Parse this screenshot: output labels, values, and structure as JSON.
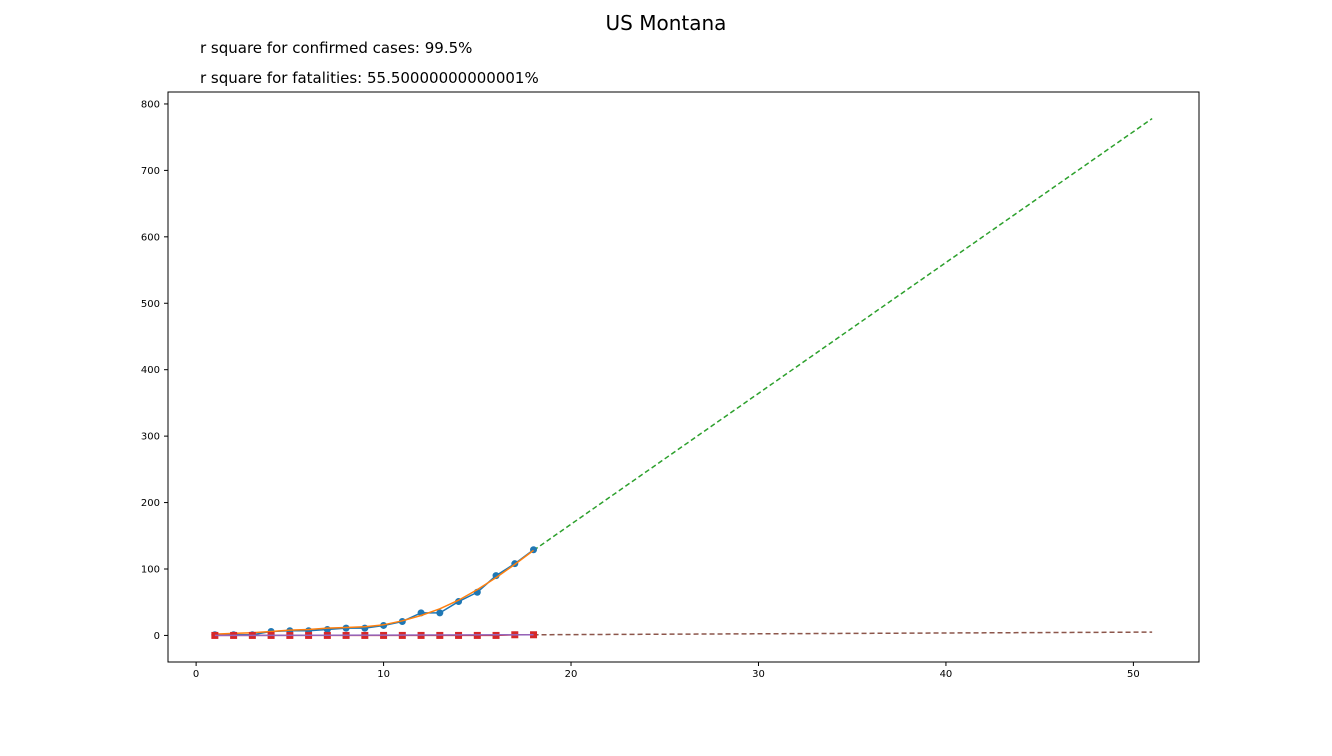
{
  "chart_data": {
    "type": "line",
    "title": "US Montana",
    "annotations": [
      "r square for confirmed cases: 99.5%",
      "r square for fatalities: 55.50000000000001%"
    ],
    "xlabel": "",
    "ylabel": "",
    "xlim": [
      -1.5,
      53.5
    ],
    "ylim": [
      -40,
      818
    ],
    "xticks": [
      0,
      10,
      20,
      30,
      40,
      50
    ],
    "yticks": [
      0,
      100,
      200,
      300,
      400,
      500,
      600,
      700,
      800
    ],
    "grid": false,
    "colors": {
      "confirmed": "#1f77b4",
      "confirmed_fit": "#ff7f0e",
      "confirmed_projection": "#2ca02c",
      "fatalities": "#d62728",
      "fatalities_fit": "#9467bd",
      "fatalities_projection": "#8c564b"
    },
    "series": [
      {
        "key": "confirmed",
        "style": "line-marker-circle",
        "x": [
          1,
          2,
          3,
          4,
          5,
          6,
          7,
          8,
          9,
          10,
          11,
          12,
          13,
          14,
          15,
          16,
          17,
          18
        ],
        "y": [
          1,
          1,
          1,
          6,
          7,
          7,
          9,
          11,
          11,
          15,
          21,
          34,
          34,
          51,
          65,
          90,
          108,
          129
        ]
      },
      {
        "key": "confirmed_fit",
        "style": "line",
        "x": [
          1,
          2,
          3,
          4,
          5,
          6,
          7,
          8,
          9,
          10,
          11,
          12,
          13,
          14,
          15,
          16,
          17,
          18
        ],
        "y": [
          2,
          3,
          4,
          6,
          8,
          9,
          11,
          12,
          13,
          16,
          22,
          30,
          40,
          53,
          69,
          87,
          107,
          128
        ]
      },
      {
        "key": "confirmed_projection",
        "style": "dashed",
        "x": [
          18,
          51
        ],
        "y": [
          128,
          778
        ]
      },
      {
        "key": "fatalities",
        "style": "line-marker-square",
        "x": [
          1,
          2,
          3,
          4,
          5,
          6,
          7,
          8,
          9,
          10,
          11,
          12,
          13,
          14,
          15,
          16,
          17,
          18
        ],
        "y": [
          0,
          0,
          0,
          0,
          0,
          0,
          0,
          0,
          0,
          0,
          0,
          0,
          0,
          0,
          0,
          0,
          1,
          1
        ]
      },
      {
        "key": "fatalities_fit",
        "style": "line",
        "x": [
          1,
          18
        ],
        "y": [
          0,
          1
        ]
      },
      {
        "key": "fatalities_projection",
        "style": "dashed",
        "x": [
          18,
          51
        ],
        "y": [
          1,
          5
        ]
      }
    ]
  }
}
